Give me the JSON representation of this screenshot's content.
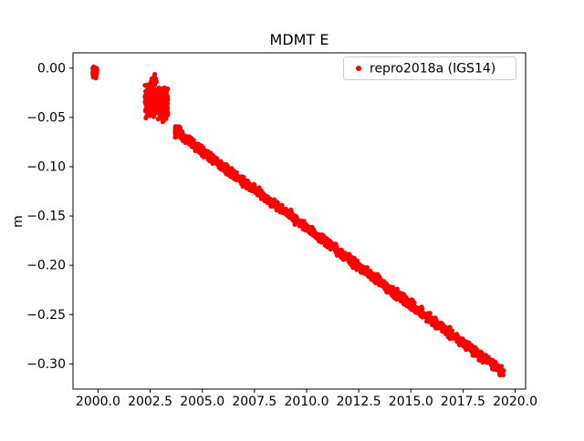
{
  "figure": {
    "title": "MDMT E"
  },
  "chart_data": {
    "type": "scatter",
    "title": "MDMT E",
    "xlabel": "",
    "ylabel": "m",
    "xlim": [
      1998.8,
      2020.5
    ],
    "ylim": [
      -0.3255,
      0.0155
    ],
    "grid": false,
    "legend_position": "upper right",
    "background_color": "#ffffff",
    "spine_color": "#000000",
    "x_ticks": {
      "values": [
        2000.0,
        2002.5,
        2005.0,
        2007.5,
        2010.0,
        2012.5,
        2015.0,
        2017.5,
        2020.0
      ],
      "labels": [
        "2000.0",
        "2002.5",
        "2005.0",
        "2007.5",
        "2010.0",
        "2012.5",
        "2015.0",
        "2017.5",
        "2020.0"
      ]
    },
    "y_ticks": {
      "values": [
        0.0,
        -0.05,
        -0.1,
        -0.15,
        -0.2,
        -0.25,
        -0.3
      ],
      "labels": [
        "0.00",
        "−0.05",
        "−0.10",
        "−0.15",
        "−0.20",
        "−0.25",
        "−0.30"
      ]
    },
    "series": [
      {
        "name": "repro2018a (IGS14)",
        "color": "#ff0000",
        "marker": "point",
        "marker_radius_px": 2.6,
        "segments": [
          {
            "label": "initial-cluster-1999",
            "x0": 1999.74,
            "x1": 1999.95,
            "y0": -0.004,
            "y1": -0.004,
            "spread": 0.005,
            "n": 60
          },
          {
            "label": "sparse-points-2002-top",
            "x0": 2002.5,
            "x1": 2002.9,
            "y0": -0.016,
            "y1": -0.016,
            "spread": 0.008,
            "n": 20
          },
          {
            "label": "noisy-cluster-2002",
            "x0": 2002.25,
            "x1": 2003.35,
            "y0": -0.034,
            "y1": -0.036,
            "spread": 0.014,
            "n": 380
          },
          {
            "label": "dense-knot-2003",
            "x0": 2003.7,
            "x1": 2003.95,
            "y0": -0.064,
            "y1": -0.064,
            "spread": 0.005,
            "n": 130
          },
          {
            "label": "linear-trend",
            "x0": 2003.9,
            "x1": 2019.45,
            "y0": -0.067,
            "y1": -0.309,
            "spread": 0.0045,
            "n": 1600
          }
        ]
      }
    ]
  }
}
